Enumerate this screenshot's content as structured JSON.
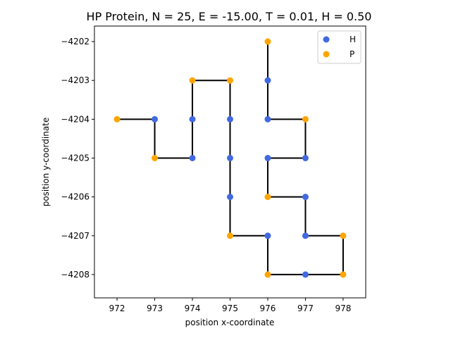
{
  "chart_data": {
    "type": "scatter",
    "title": "HP Protein, N = 25, E = -15.00, T = 0.01, H = 0.50",
    "xlabel": "position x-coordinate",
    "ylabel": "position y-coordinate",
    "xlim": [
      971.4,
      978.6
    ],
    "ylim": [
      -4208.6,
      -4201.6
    ],
    "xticks": [
      972,
      973,
      974,
      975,
      976,
      977,
      978
    ],
    "yticks": [
      -4202,
      -4203,
      -4204,
      -4205,
      -4206,
      -4207,
      -4208
    ],
    "grid": false,
    "legend_position": "top-right",
    "colors": {
      "H": "#4169e1",
      "P": "#ffa500",
      "chain": "#000000"
    },
    "chain": [
      {
        "x": 972,
        "y": -4204,
        "type": "P"
      },
      {
        "x": 973,
        "y": -4204,
        "type": "H"
      },
      {
        "x": 973,
        "y": -4205,
        "type": "P"
      },
      {
        "x": 974,
        "y": -4205,
        "type": "H"
      },
      {
        "x": 974,
        "y": -4204,
        "type": "H"
      },
      {
        "x": 974,
        "y": -4203,
        "type": "P"
      },
      {
        "x": 975,
        "y": -4203,
        "type": "P"
      },
      {
        "x": 975,
        "y": -4204,
        "type": "H"
      },
      {
        "x": 975,
        "y": -4205,
        "type": "H"
      },
      {
        "x": 975,
        "y": -4206,
        "type": "H"
      },
      {
        "x": 975,
        "y": -4207,
        "type": "P"
      },
      {
        "x": 976,
        "y": -4207,
        "type": "H"
      },
      {
        "x": 976,
        "y": -4208,
        "type": "P"
      },
      {
        "x": 977,
        "y": -4208,
        "type": "H"
      },
      {
        "x": 978,
        "y": -4208,
        "type": "P"
      },
      {
        "x": 978,
        "y": -4207,
        "type": "P"
      },
      {
        "x": 977,
        "y": -4207,
        "type": "H"
      },
      {
        "x": 977,
        "y": -4206,
        "type": "H"
      },
      {
        "x": 976,
        "y": -4206,
        "type": "P"
      },
      {
        "x": 976,
        "y": -4205,
        "type": "H"
      },
      {
        "x": 977,
        "y": -4205,
        "type": "H"
      },
      {
        "x": 977,
        "y": -4204,
        "type": "P"
      },
      {
        "x": 976,
        "y": -4204,
        "type": "H"
      },
      {
        "x": 976,
        "y": -4203,
        "type": "H"
      },
      {
        "x": 976,
        "y": -4202,
        "type": "P"
      }
    ],
    "legend": [
      {
        "label": "H",
        "type": "H"
      },
      {
        "label": "P",
        "type": "P"
      }
    ]
  }
}
